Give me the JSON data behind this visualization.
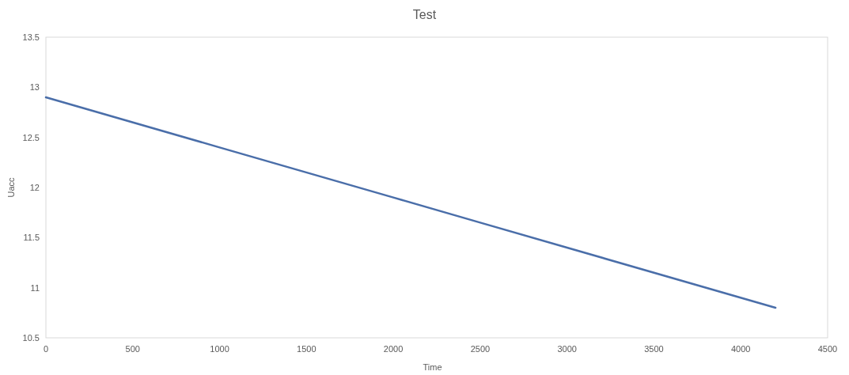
{
  "chart_data": {
    "type": "line",
    "title": "Test",
    "xlabel": "Time",
    "ylabel": "Uacc",
    "x": [
      0,
      1000,
      2000,
      2500,
      3000,
      4200
    ],
    "series": [
      {
        "color": "#4a6ea9",
        "values": [
          12.9,
          12.4,
          11.9,
          11.65,
          11.4,
          10.8
        ]
      }
    ],
    "xlim": [
      0,
      4500
    ],
    "xticks": [
      0,
      500,
      1000,
      1500,
      2000,
      2500,
      3000,
      3500,
      4000,
      4500
    ],
    "ylim": [
      10.5,
      13.5
    ],
    "yticks": [
      10.5,
      11,
      11.5,
      12,
      12.5,
      13,
      13.5
    ],
    "grid": false,
    "marker": "none"
  }
}
